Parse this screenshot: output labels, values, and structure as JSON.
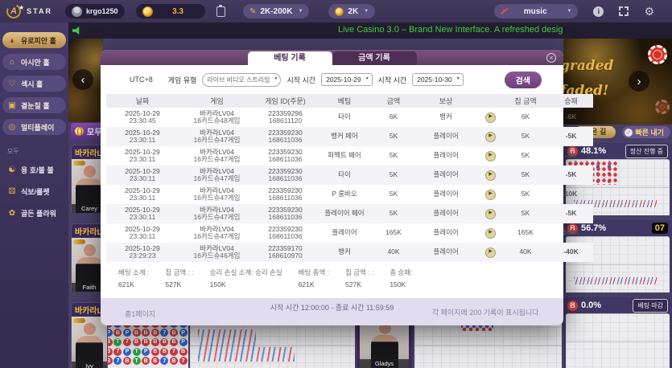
{
  "colors": {
    "accent_gold": "#e8b84b",
    "win_green": "#27a844",
    "loss_red": "#e23b3b",
    "banker_red": "#cf3a3e",
    "player_blue": "#2f63c9",
    "tie_green": "#2f9e44",
    "modal_purple": "#5d3c63"
  },
  "icons": {
    "star": "★",
    "gear": "⚙",
    "music_note": "♪",
    "dropdown": "▼",
    "close": "×",
    "prev": "‹",
    "next": "›",
    "check": "✓",
    "play": "▶",
    "info": "i",
    "clipboard": "css-shape",
    "fullscreen": "css-shape",
    "speaker": "css-shape",
    "globe": "css-shape",
    "coin": "css-shape",
    "pencil": "✎"
  },
  "topbar": {
    "logo_letter": "A",
    "logo_text": "STAR",
    "username": "krgo125093...",
    "balance": "3.3",
    "bet_range": "2K-200K",
    "chip_value": "2K",
    "music_label": "music"
  },
  "marquee": {
    "text": "Live Casino 3.0 – Brand New Interface. A refreshed desig"
  },
  "sidebar": {
    "halls": [
      {
        "label": "유로피안 홀",
        "icon": "icon-eiffel",
        "cls": "active"
      },
      {
        "label": "아시안 홀",
        "icon": "icon-asian"
      },
      {
        "label": "섹시 홀",
        "icon": "icon-sexy"
      },
      {
        "label": "곁눈질 홀",
        "icon": "icon-peek"
      },
      {
        "label": "멀티플레이",
        "icon": "icon-multi"
      }
    ],
    "section_label": "모두",
    "games": [
      {
        "label": "용 호/불 불",
        "icon": "icon-dragon"
      },
      {
        "label": "식보/룰렛",
        "icon": "icon-dice"
      },
      {
        "label": "골든 플라워",
        "icon": "icon-flower"
      }
    ]
  },
  "lobby": {
    "all_tab_label": "모두",
    "banner": {
      "word1": "graded",
      "word2": "faded!"
    },
    "left_cards": [
      {
        "title": "바카라LV",
        "dealer": "Carey"
      },
      {
        "title": "바카라LV",
        "dealer": "Faith"
      },
      {
        "title": "바카라LV",
        "dealer": "Ivy"
      }
    ],
    "bottom_dealer": "Gladys",
    "good_road_label": "좋은 길",
    "quick_bet_label": "빠른 내기",
    "right_panels": [
      {
        "letter": "B",
        "percent": "48.1%",
        "status": "정산 진행 중",
        "status_cls": "st-btn",
        "road_cls": "road-a"
      },
      {
        "letter": "B",
        "percent": "56.7%",
        "status": "07",
        "status_cls": "st-timer",
        "road_cls": "road-b"
      },
      {
        "letter": "B",
        "percent": "0.0%",
        "status": "베팅 마감",
        "status_cls": "st-btn",
        "road_cls": "road-c"
      }
    ],
    "bead_plate": {
      "legend": {
        "B": {
          "label": "B",
          "cls": "red"
        },
        "P": {
          "label": "P",
          "cls": "blue"
        },
        "T": {
          "label": "T",
          "cls": "green"
        },
        "S": {
          "label": "7",
          "cls": "blue"
        },
        "R": {
          "label": "7",
          "cls": "red"
        }
      },
      "cells": [
        "B",
        "P",
        "B",
        "B",
        "B",
        "B",
        "B",
        "P",
        "P",
        "P",
        "B",
        "P",
        "B",
        "B",
        "B",
        "S",
        "B",
        "P",
        "B",
        "T",
        "R",
        "B",
        "B",
        "B",
        "B",
        "B",
        "P",
        "B",
        "R",
        "P",
        "T",
        "P",
        "B",
        "B",
        "R",
        "B",
        "B",
        "S",
        "B",
        "T",
        "B",
        "B",
        "S",
        "B",
        "R"
      ]
    }
  },
  "modal": {
    "tabs": [
      {
        "label": "베팅 기록"
      },
      {
        "label": "금액 기록"
      }
    ],
    "filters": {
      "timezone": "UTC+8",
      "game_type_label": "게임 유형",
      "game_type_value": "라이브 비디오 스트리밍",
      "start_label": "시작 시간",
      "start_value": "2025-10-29",
      "end_label": "시작 시간",
      "end_value": "2025-10-30",
      "search_label": "검색"
    },
    "table": {
      "headers": [
        "날짜",
        "게임",
        "게임 ID(주문)",
        "베팅",
        "금액",
        "보상",
        "",
        "칩 금액",
        "승패"
      ],
      "rows": [
        {
          "date": "2025-10-29",
          "time": "23:30:45",
          "game": "바카라LV04",
          "round": "16카드슈48게임",
          "order1": "223359296",
          "order2": "168611120",
          "bet": "타이",
          "amount": "6K",
          "reward": "뱅커",
          "chip": "6K",
          "result": "-6K"
        },
        {
          "date": "2025-10-29",
          "time": "23:30:11",
          "game": "바카라LV04",
          "round": "16카드슈47게임",
          "order1": "223359230",
          "order2": "168611036",
          "bet": "뱅커 페어",
          "amount": "5K",
          "reward": "플레이어",
          "chip": "5K",
          "result": "-5K"
        },
        {
          "date": "2025-10-29",
          "time": "23:30:11",
          "game": "바카라LV04",
          "round": "16카드슈47게임",
          "order1": "223359230",
          "order2": "168611036",
          "bet": "퍼펙트 페어",
          "amount": "5K",
          "reward": "플레이어",
          "chip": "5K",
          "result": "-5K"
        },
        {
          "date": "2025-10-29",
          "time": "23:30:11",
          "game": "바카라LV04",
          "round": "16카드슈47게임",
          "order1": "223359230",
          "order2": "168611036",
          "bet": "타이",
          "amount": "5K",
          "reward": "플레이어",
          "chip": "5K",
          "result": "-5K"
        },
        {
          "date": "2025-10-29",
          "time": "23:30:11",
          "game": "바카라LV04",
          "round": "16카드슈47게임",
          "order1": "223359230",
          "order2": "168611036",
          "bet": "P 룽바오",
          "amount": "5K",
          "reward": "플레이어",
          "chip": "5K",
          "result": "10K"
        },
        {
          "date": "2025-10-29",
          "time": "23:30:11",
          "game": "바카라LV04",
          "round": "16카드슈47게임",
          "order1": "223359230",
          "order2": "168611036",
          "bet": "플레이어 페어",
          "amount": "5K",
          "reward": "플레이어",
          "chip": "5K",
          "result": "-5K"
        },
        {
          "date": "2025-10-29",
          "time": "23:30:11",
          "game": "바카라LV04",
          "round": "16카드슈47게임",
          "order1": "223359230",
          "order2": "168611036",
          "bet": "플레이어",
          "amount": "165K",
          "reward": "플레이어",
          "chip": "165K",
          "result": "165K"
        },
        {
          "date": "2025-10-29",
          "time": "23:29:23",
          "game": "바카라LV04",
          "round": "16카드슈46게임",
          "order1": "223359170",
          "order2": "168610970",
          "bet": "뱅커",
          "amount": "40K",
          "reward": "플레이어",
          "chip": "40K",
          "result": "-40K"
        }
      ]
    },
    "summary": [
      {
        "label": "베팅 소계 :",
        "value": "621K"
      },
      {
        "label": "칩 금액 : :",
        "value": "527K"
      },
      {
        "label": "승리 손실 소계: 승리 손실",
        "value": "150K"
      },
      {
        "label": "베팅 총액 :",
        "value": "621K"
      },
      {
        "label": "칩 금액 : :",
        "value": "527K"
      },
      {
        "label": "총 승패:",
        "value": "150K"
      }
    ],
    "footer": {
      "pages": "총1페이지",
      "time_range": "시작 시간 12:00:00 - 종료 시간 11:59:59",
      "per_page": "각 페이지에 200 기록이 표시됩니다."
    }
  }
}
